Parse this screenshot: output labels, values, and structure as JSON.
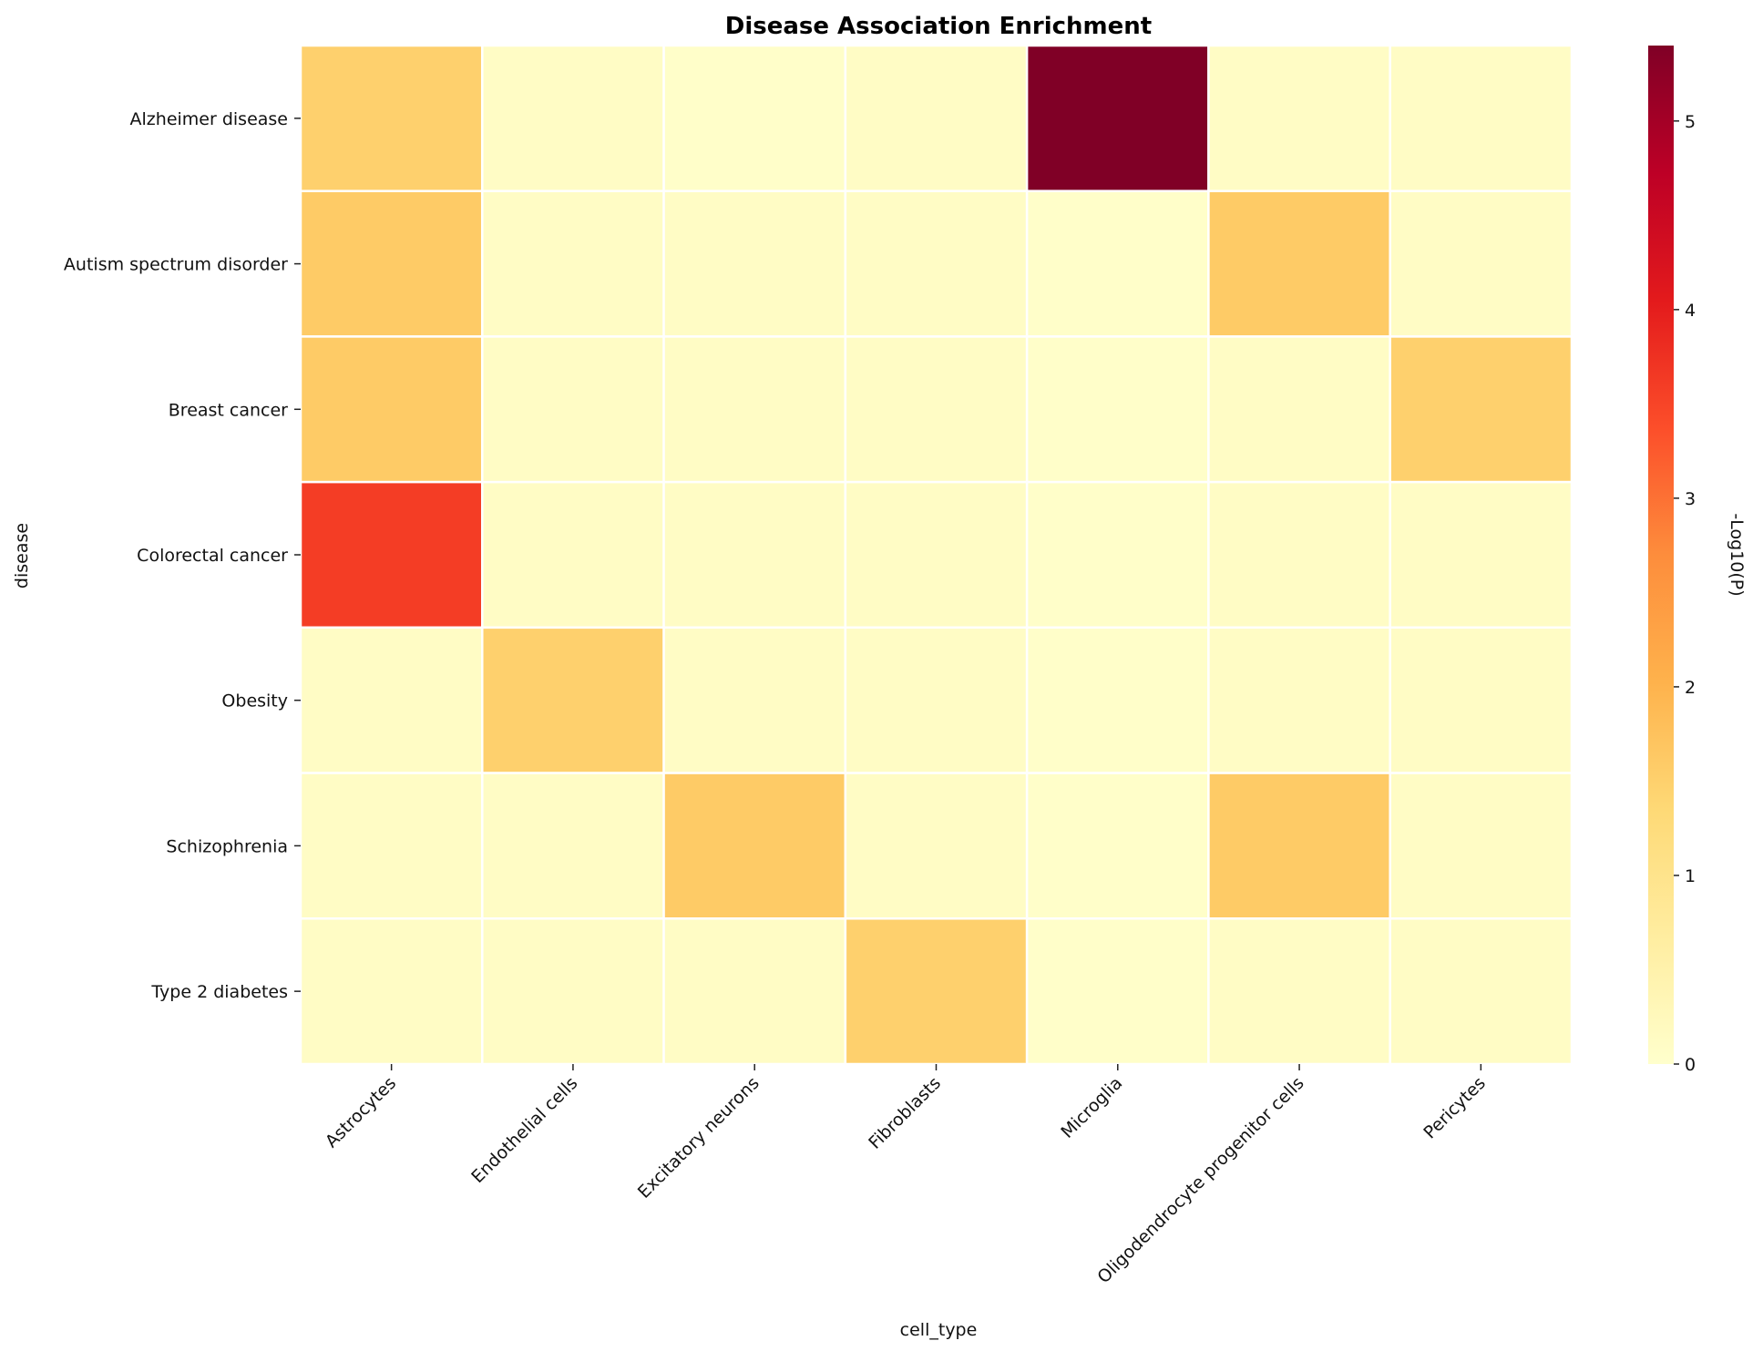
{
  "chart_data": {
    "type": "heatmap",
    "title": "Disease Association Enrichment",
    "xlabel": "cell_type",
    "ylabel": "disease",
    "x_categories": [
      "Astrocytes",
      "Endothelial cells",
      "Excitatory neurons",
      "Fibroblasts",
      "Microglia",
      "Oligodendrocyte progenitor cells",
      "Pericytes"
    ],
    "y_categories": [
      "Alzheimer disease",
      "Autism spectrum disorder",
      "Breast cancer",
      "Colorectal cancer",
      "Obesity",
      "Schizophrenia",
      "Type 2 diabetes"
    ],
    "values": [
      [
        1.5,
        0.1,
        0.05,
        0.1,
        5.4,
        0.1,
        0.1
      ],
      [
        1.6,
        0.1,
        0.1,
        0.1,
        0.05,
        1.6,
        0.1
      ],
      [
        1.6,
        0.1,
        0.1,
        0.1,
        0.05,
        0.1,
        1.5
      ],
      [
        3.6,
        0.1,
        0.1,
        0.1,
        0.05,
        0.1,
        0.1
      ],
      [
        0.1,
        1.5,
        0.1,
        0.1,
        0.05,
        0.1,
        0.1
      ],
      [
        0.1,
        0.1,
        1.6,
        0.1,
        0.05,
        1.6,
        0.1
      ],
      [
        0.1,
        0.1,
        0.1,
        1.5,
        0.05,
        0.1,
        0.1
      ]
    ],
    "colorbar": {
      "label": "-Log10(P)",
      "min": 0,
      "max": 5.4,
      "ticks": [
        0,
        1,
        2,
        3,
        4,
        5
      ],
      "colormap": "YlOrRd"
    },
    "grid": false
  }
}
